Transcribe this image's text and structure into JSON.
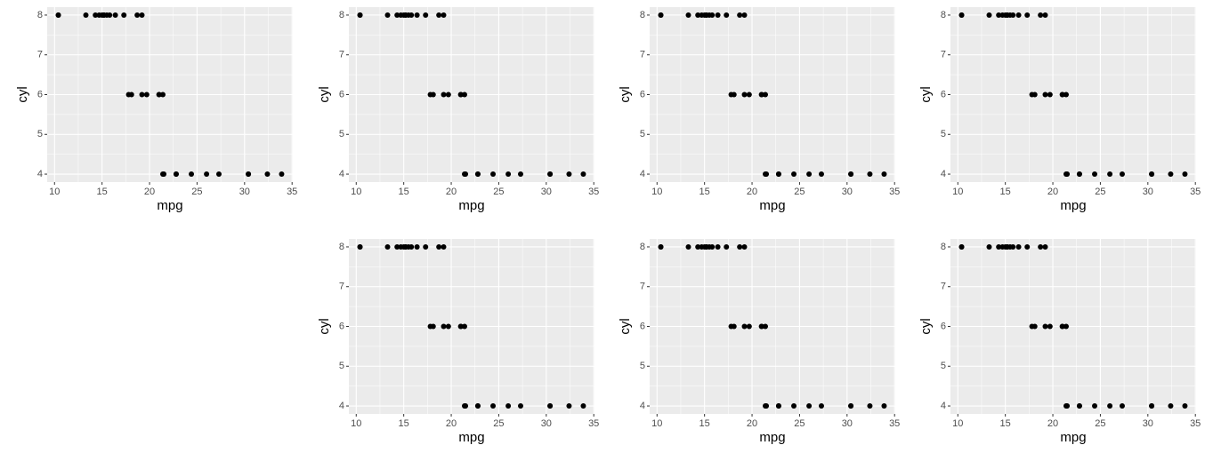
{
  "chart_data": [
    {
      "type": "scatter",
      "xlabel": "mpg",
      "ylabel": "cyl",
      "color": "#000000",
      "grid": true,
      "xlim": [
        9.225,
        35.075
      ],
      "ylim": [
        3.8,
        8.2
      ],
      "xticks": [
        10,
        15,
        20,
        25,
        30,
        35
      ],
      "yticks": [
        4,
        5,
        6,
        7,
        8
      ],
      "x": [
        21.0,
        21.0,
        22.8,
        21.4,
        18.7,
        18.1,
        14.3,
        24.4,
        22.8,
        19.2,
        17.8,
        16.4,
        17.3,
        15.2,
        10.4,
        10.4,
        14.7,
        32.4,
        30.4,
        33.9,
        21.5,
        15.5,
        15.2,
        13.3,
        19.2,
        27.3,
        26.0,
        30.4,
        15.8,
        19.7,
        15.0,
        21.4
      ],
      "values": [
        6,
        6,
        4,
        6,
        8,
        6,
        8,
        4,
        4,
        6,
        6,
        8,
        8,
        8,
        8,
        8,
        8,
        4,
        4,
        4,
        4,
        8,
        8,
        8,
        8,
        4,
        4,
        4,
        8,
        6,
        8,
        4
      ]
    },
    {
      "type": "scatter",
      "xlabel": "mpg",
      "ylabel": "cyl",
      "color": "#000000",
      "grid": true,
      "xlim": [
        9.225,
        35.075
      ],
      "ylim": [
        3.8,
        8.2
      ],
      "xticks": [
        10,
        15,
        20,
        25,
        30,
        35
      ],
      "yticks": [
        4,
        5,
        6,
        7,
        8
      ],
      "x": [
        21.0,
        21.0,
        22.8,
        21.4,
        18.7,
        18.1,
        14.3,
        24.4,
        22.8,
        19.2,
        17.8,
        16.4,
        17.3,
        15.2,
        10.4,
        10.4,
        14.7,
        32.4,
        30.4,
        33.9,
        21.5,
        15.5,
        15.2,
        13.3,
        19.2,
        27.3,
        26.0,
        30.4,
        15.8,
        19.7,
        15.0,
        21.4
      ],
      "values": [
        6,
        6,
        4,
        6,
        8,
        6,
        8,
        4,
        4,
        6,
        6,
        8,
        8,
        8,
        8,
        8,
        8,
        4,
        4,
        4,
        4,
        8,
        8,
        8,
        8,
        4,
        4,
        4,
        8,
        6,
        8,
        4
      ]
    },
    {
      "type": "scatter",
      "xlabel": "mpg",
      "ylabel": "cyl",
      "color": "#000000",
      "grid": true,
      "xlim": [
        9.225,
        35.075
      ],
      "ylim": [
        3.8,
        8.2
      ],
      "xticks": [
        10,
        15,
        20,
        25,
        30,
        35
      ],
      "yticks": [
        4,
        5,
        6,
        7,
        8
      ],
      "x": [
        21.0,
        21.0,
        22.8,
        21.4,
        18.7,
        18.1,
        14.3,
        24.4,
        22.8,
        19.2,
        17.8,
        16.4,
        17.3,
        15.2,
        10.4,
        10.4,
        14.7,
        32.4,
        30.4,
        33.9,
        21.5,
        15.5,
        15.2,
        13.3,
        19.2,
        27.3,
        26.0,
        30.4,
        15.8,
        19.7,
        15.0,
        21.4
      ],
      "values": [
        6,
        6,
        4,
        6,
        8,
        6,
        8,
        4,
        4,
        6,
        6,
        8,
        8,
        8,
        8,
        8,
        8,
        4,
        4,
        4,
        4,
        8,
        8,
        8,
        8,
        4,
        4,
        4,
        8,
        6,
        8,
        4
      ]
    },
    {
      "type": "scatter",
      "xlabel": "mpg",
      "ylabel": "cyl",
      "color": "#000000",
      "grid": true,
      "xlim": [
        9.225,
        35.075
      ],
      "ylim": [
        3.8,
        8.2
      ],
      "xticks": [
        10,
        15,
        20,
        25,
        30,
        35
      ],
      "yticks": [
        4,
        5,
        6,
        7,
        8
      ],
      "x": [
        21.0,
        21.0,
        22.8,
        21.4,
        18.7,
        18.1,
        14.3,
        24.4,
        22.8,
        19.2,
        17.8,
        16.4,
        17.3,
        15.2,
        10.4,
        10.4,
        14.7,
        32.4,
        30.4,
        33.9,
        21.5,
        15.5,
        15.2,
        13.3,
        19.2,
        27.3,
        26.0,
        30.4,
        15.8,
        19.7,
        15.0,
        21.4
      ],
      "values": [
        6,
        6,
        4,
        6,
        8,
        6,
        8,
        4,
        4,
        6,
        6,
        8,
        8,
        8,
        8,
        8,
        8,
        4,
        4,
        4,
        4,
        8,
        8,
        8,
        8,
        4,
        4,
        4,
        8,
        6,
        8,
        4
      ]
    },
    {
      "type": "scatter",
      "xlabel": "mpg",
      "ylabel": "cyl",
      "color": "#000000",
      "grid": true,
      "xlim": [
        9.225,
        35.075
      ],
      "ylim": [
        3.8,
        8.2
      ],
      "xticks": [
        10,
        15,
        20,
        25,
        30,
        35
      ],
      "yticks": [
        4,
        5,
        6,
        7,
        8
      ],
      "x": [
        21.0,
        21.0,
        22.8,
        21.4,
        18.7,
        18.1,
        14.3,
        24.4,
        22.8,
        19.2,
        17.8,
        16.4,
        17.3,
        15.2,
        10.4,
        10.4,
        14.7,
        32.4,
        30.4,
        33.9,
        21.5,
        15.5,
        15.2,
        13.3,
        19.2,
        27.3,
        26.0,
        30.4,
        15.8,
        19.7,
        15.0,
        21.4
      ],
      "values": [
        6,
        6,
        4,
        6,
        8,
        6,
        8,
        4,
        4,
        6,
        6,
        8,
        8,
        8,
        8,
        8,
        8,
        4,
        4,
        4,
        4,
        8,
        8,
        8,
        8,
        4,
        4,
        4,
        8,
        6,
        8,
        4
      ]
    },
    {
      "type": "scatter",
      "xlabel": "mpg",
      "ylabel": "cyl",
      "color": "#000000",
      "grid": true,
      "xlim": [
        9.225,
        35.075
      ],
      "ylim": [
        3.8,
        8.2
      ],
      "xticks": [
        10,
        15,
        20,
        25,
        30,
        35
      ],
      "yticks": [
        4,
        5,
        6,
        7,
        8
      ],
      "x": [
        21.0,
        21.0,
        22.8,
        21.4,
        18.7,
        18.1,
        14.3,
        24.4,
        22.8,
        19.2,
        17.8,
        16.4,
        17.3,
        15.2,
        10.4,
        10.4,
        14.7,
        32.4,
        30.4,
        33.9,
        21.5,
        15.5,
        15.2,
        13.3,
        19.2,
        27.3,
        26.0,
        30.4,
        15.8,
        19.7,
        15.0,
        21.4
      ],
      "values": [
        6,
        6,
        4,
        6,
        8,
        6,
        8,
        4,
        4,
        6,
        6,
        8,
        8,
        8,
        8,
        8,
        8,
        4,
        4,
        4,
        4,
        8,
        8,
        8,
        8,
        4,
        4,
        4,
        8,
        6,
        8,
        4
      ]
    },
    {
      "type": "scatter",
      "xlabel": "mpg",
      "ylabel": "cyl",
      "color": "#000000",
      "grid": true,
      "xlim": [
        9.225,
        35.075
      ],
      "ylim": [
        3.8,
        8.2
      ],
      "xticks": [
        10,
        15,
        20,
        25,
        30,
        35
      ],
      "yticks": [
        4,
        5,
        6,
        7,
        8
      ],
      "x": [
        21.0,
        21.0,
        22.8,
        21.4,
        18.7,
        18.1,
        14.3,
        24.4,
        22.8,
        19.2,
        17.8,
        16.4,
        17.3,
        15.2,
        10.4,
        10.4,
        14.7,
        32.4,
        30.4,
        33.9,
        21.5,
        15.5,
        15.2,
        13.3,
        19.2,
        27.3,
        26.0,
        30.4,
        15.8,
        19.7,
        15.0,
        21.4
      ],
      "values": [
        6,
        6,
        4,
        6,
        8,
        6,
        8,
        4,
        4,
        6,
        6,
        8,
        8,
        8,
        8,
        8,
        8,
        4,
        4,
        4,
        4,
        8,
        8,
        8,
        8,
        4,
        4,
        4,
        8,
        6,
        8,
        4
      ]
    }
  ]
}
